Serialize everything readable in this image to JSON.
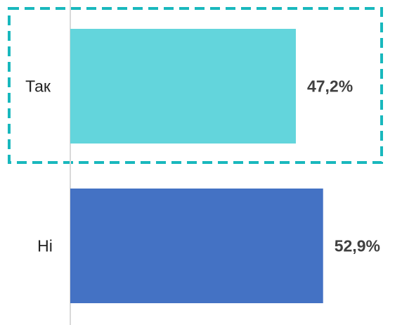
{
  "chart_data": {
    "type": "bar",
    "orientation": "horizontal",
    "categories": [
      "Так",
      "Ні"
    ],
    "values": [
      47.2,
      52.9
    ],
    "value_labels": [
      "47,2%",
      "52,9%"
    ],
    "unit": "%",
    "xlim": [
      0,
      60
    ],
    "grid": false,
    "legend": "none",
    "colors": [
      "#63D5DC",
      "#4472C4"
    ],
    "highlight": {
      "category": "Так",
      "style": "dashed-outline",
      "color": "#19B8BD"
    },
    "axis_color": "#D9D9D9",
    "title": "",
    "xlabel": "",
    "ylabel": ""
  }
}
